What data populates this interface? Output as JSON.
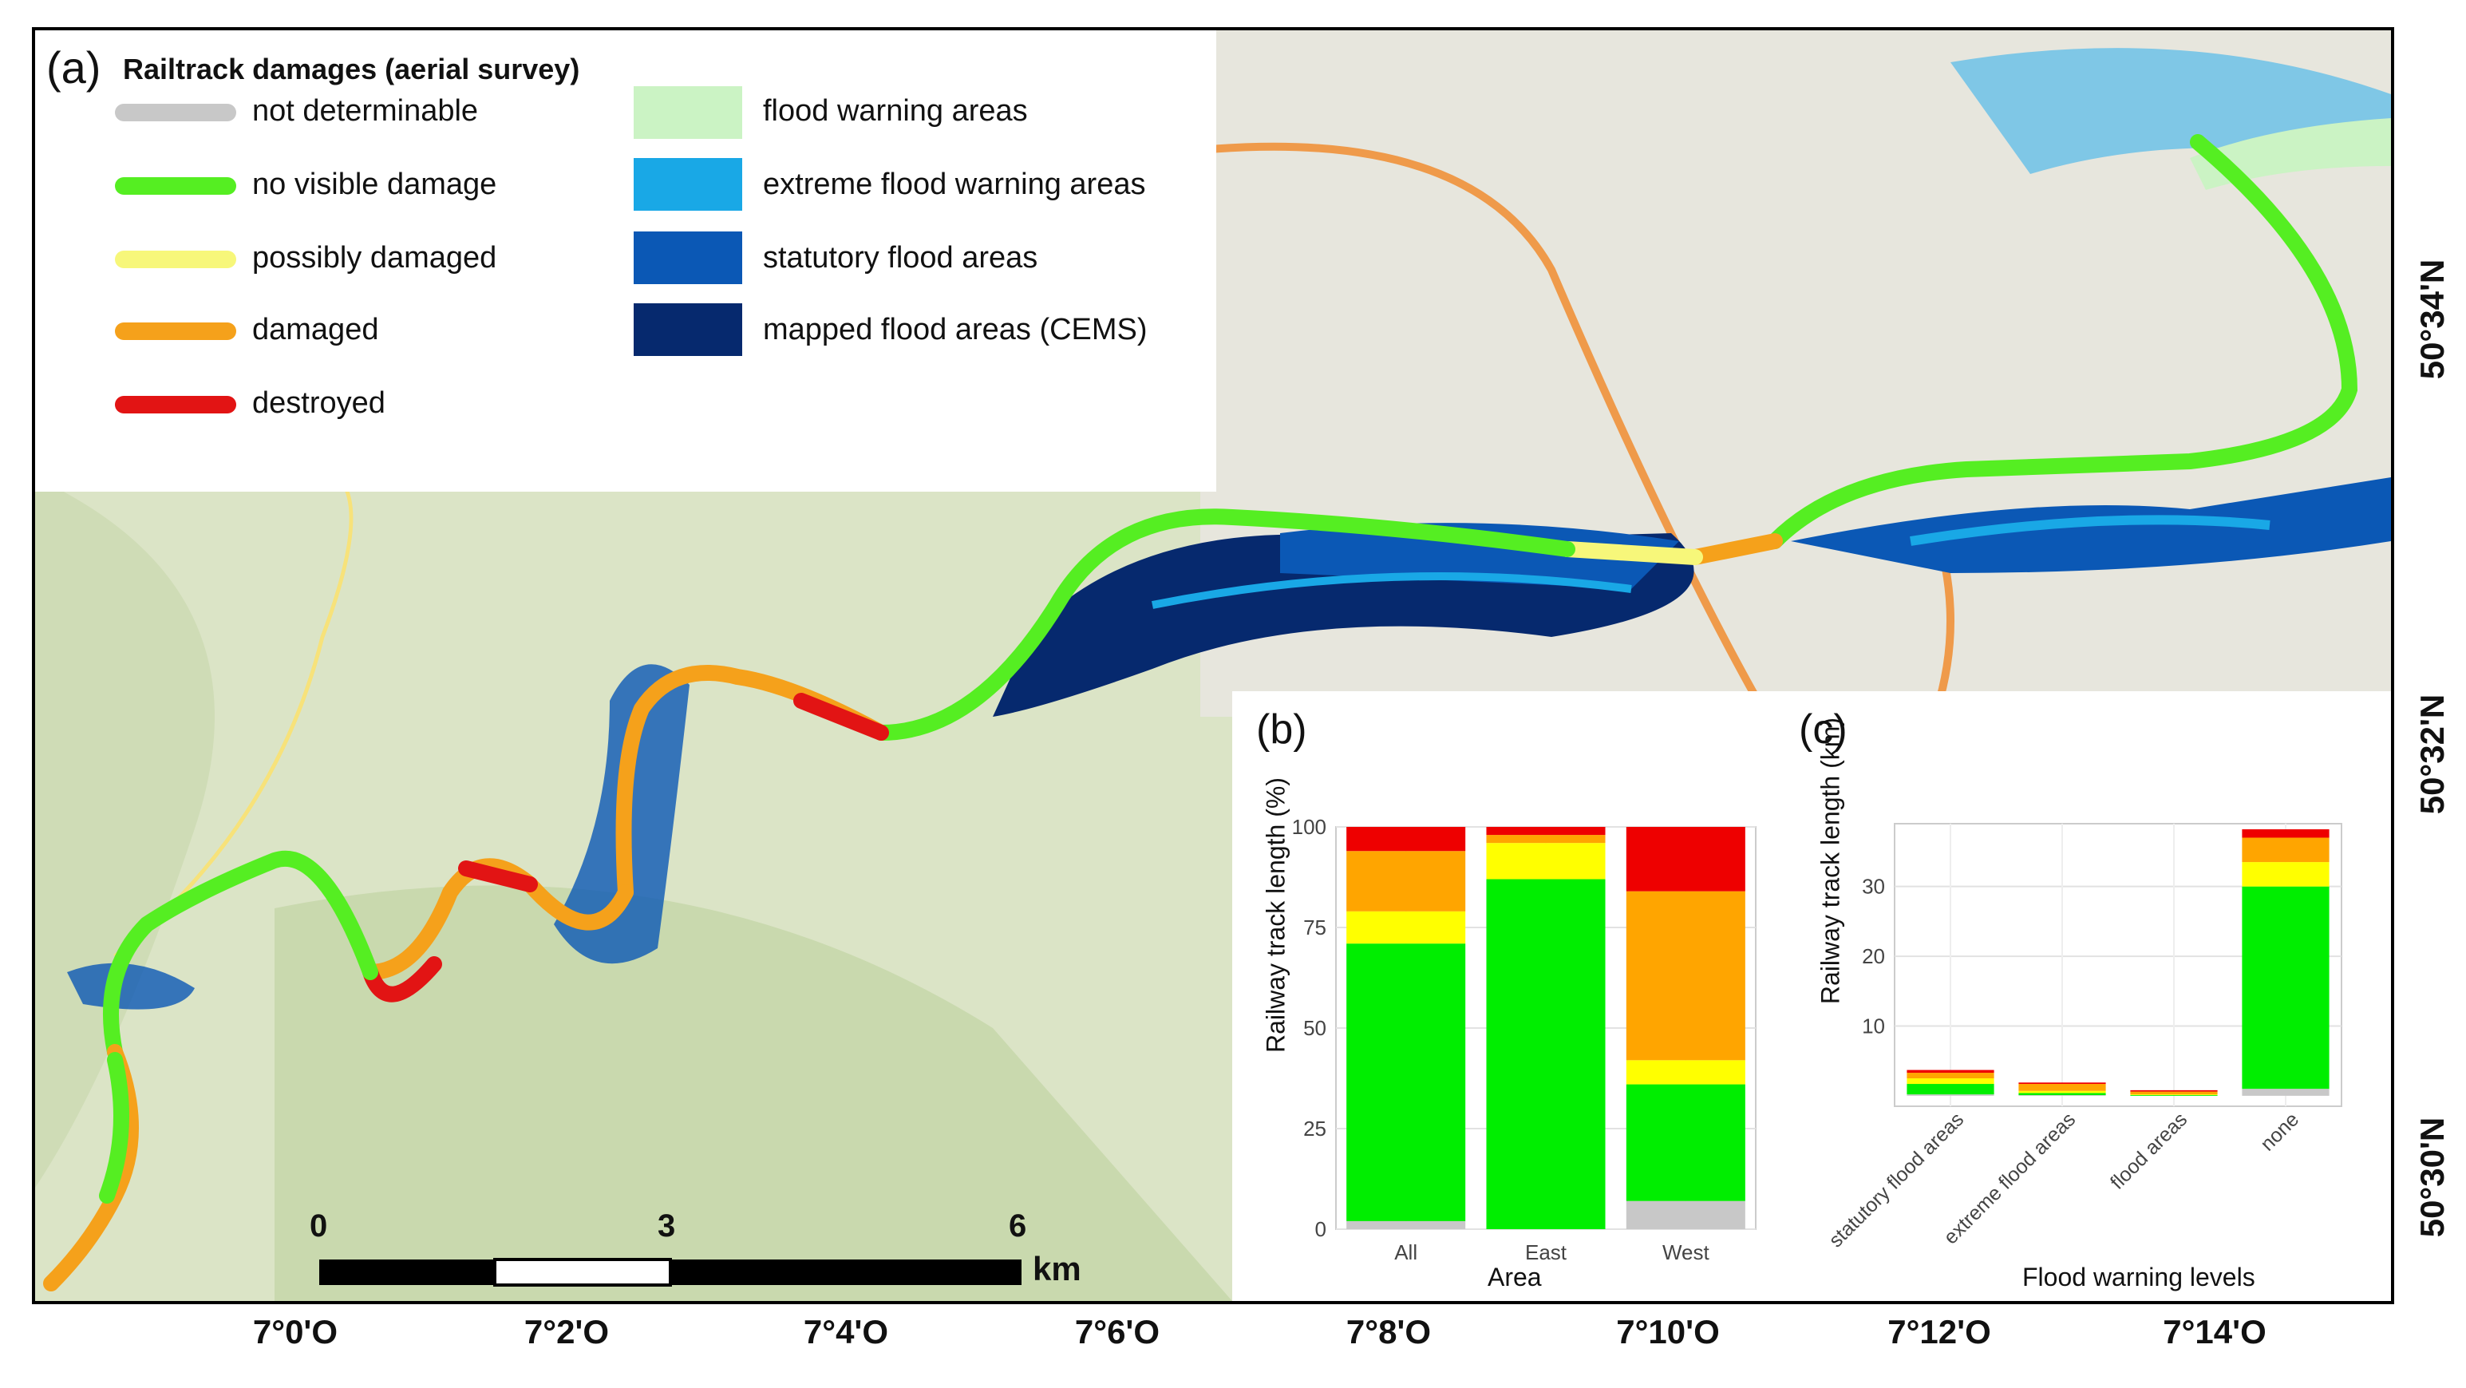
{
  "legend": {
    "panel_letter": "(a)",
    "title": "Railtrack damages (aerial survey)",
    "damage_classes": [
      {
        "label": "not determinable",
        "color": "#c8c8c8"
      },
      {
        "label": "no visible damage",
        "color": "#55ee22"
      },
      {
        "label": "possibly damaged",
        "color": "#f7f77a"
      },
      {
        "label": "damaged",
        "color": "#f5a11b"
      },
      {
        "label": "destroyed",
        "color": "#e21414"
      }
    ],
    "flood_classes": [
      {
        "label": "flood warning areas",
        "color": "#cbf3c4"
      },
      {
        "label": "extreme flood warning areas",
        "color": "#19a8e6"
      },
      {
        "label": "statutory flood areas",
        "color": "#0b58b5"
      },
      {
        "label": "mapped flood areas (CEMS)",
        "color": "#06296e"
      }
    ]
  },
  "scale_bar": {
    "ticks": [
      "0",
      "3",
      "6"
    ],
    "unit": "km"
  },
  "coordinates": {
    "longitude": [
      "7°0'O",
      "7°2'O",
      "7°4'O",
      "7°6'O",
      "7°8'O",
      "7°10'O",
      "7°12'O",
      "7°14'O"
    ],
    "latitude": [
      "50°34'N",
      "50°32'N",
      "50°30'N"
    ]
  },
  "colors": {
    "grey": "#c8c8c8",
    "green": "#00ee00",
    "yellow": "#ffff00",
    "orange": "#ffa500",
    "red": "#ee0000"
  },
  "chart_data": [
    {
      "panel": "(b)",
      "type": "bar",
      "stacked": true,
      "categories": [
        "All",
        "East",
        "West"
      ],
      "series": [
        {
          "values": [
            2,
            0,
            7
          ],
          "color": "#c8c8c8"
        },
        {
          "values": [
            69,
            87,
            29
          ],
          "color": "#00ee00"
        },
        {
          "values": [
            8,
            9,
            6
          ],
          "color": "#ffff00"
        },
        {
          "values": [
            15,
            2,
            42
          ],
          "color": "#ffa500"
        },
        {
          "values": [
            6,
            2,
            16
          ],
          "color": "#ee0000"
        }
      ],
      "xlabel": "Area",
      "ylabel": "Railway track length (%)",
      "yticks": [
        "0",
        "25",
        "50",
        "75",
        "100"
      ],
      "ylim": [
        0,
        100
      ],
      "grid": true
    },
    {
      "panel": "(c)",
      "type": "bar",
      "stacked": true,
      "categories": [
        "statutory flood areas",
        "extreme flood areas",
        "flood areas",
        "none"
      ],
      "series": [
        {
          "values": [
            0.2,
            0.1,
            0.0,
            1.0
          ],
          "color": "#c8c8c8"
        },
        {
          "values": [
            1.5,
            0.3,
            0.1,
            29.0
          ],
          "color": "#00ee00"
        },
        {
          "values": [
            0.8,
            0.3,
            0.1,
            3.5
          ],
          "color": "#ffff00"
        },
        {
          "values": [
            0.8,
            1.0,
            0.4,
            3.5
          ],
          "color": "#ffa500"
        },
        {
          "values": [
            0.4,
            0.2,
            0.2,
            1.2
          ],
          "color": "#ee0000"
        }
      ],
      "xlabel": "Flood warning levels",
      "ylabel": "Railway track length (km)",
      "yticks": [
        "10",
        "20",
        "30"
      ],
      "ylim": [
        -1.5,
        39
      ],
      "grid": true
    }
  ]
}
